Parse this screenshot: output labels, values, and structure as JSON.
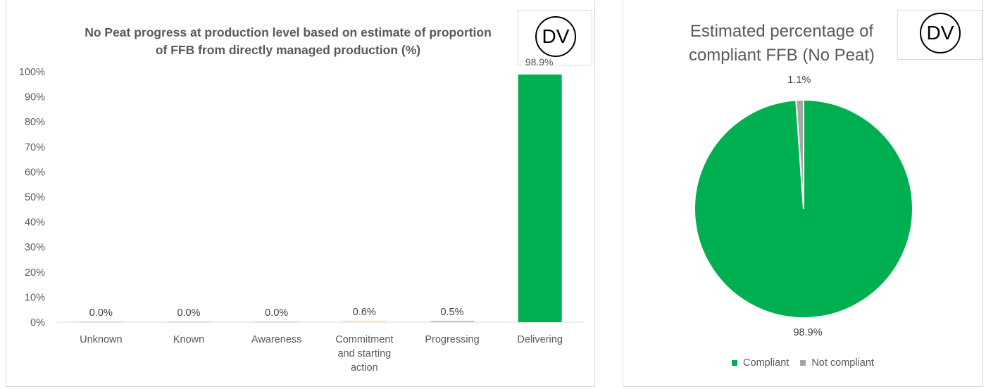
{
  "bar_title_line1": "No Peat progress at production level based on estimate of proportion",
  "bar_title_line2": "of FFB from directly managed production (%)",
  "pie_title_line1": "Estimated percentage of",
  "pie_title_line2": "compliant FFB (No Peat)",
  "dv_label": "DV",
  "chart_data": [
    {
      "type": "bar",
      "title": "No Peat progress at production level based on estimate of proportion of FFB from directly managed production (%)",
      "categories": [
        "Unknown",
        "Known",
        "Awareness",
        "Commitment and starting action",
        "Progressing",
        "Delivering"
      ],
      "category_lines": [
        [
          "Unknown"
        ],
        [
          "Known"
        ],
        [
          "Awareness"
        ],
        [
          "Commitment",
          "and starting",
          "action"
        ],
        [
          "Progressing"
        ],
        [
          "Delivering"
        ]
      ],
      "values": [
        0.0,
        0.0,
        0.0,
        0.6,
        0.5,
        98.9
      ],
      "data_labels": [
        "0.0%",
        "0.0%",
        "0.0%",
        "0.6%",
        "0.5%",
        "98.9%"
      ],
      "colors": [
        "#bfbfbf",
        "#bfbfbf",
        "#bfbfbf",
        "#ffe699",
        "#a9d18e",
        "#00b050"
      ],
      "ylim": [
        0,
        100
      ],
      "yticks": [
        "0%",
        "10%",
        "20%",
        "30%",
        "40%",
        "50%",
        "60%",
        "70%",
        "80%",
        "90%",
        "100%"
      ],
      "grid": false,
      "legend": "none"
    },
    {
      "type": "pie",
      "title": "Estimated percentage of compliant FFB (No Peat)",
      "labels": [
        "Compliant",
        "Not compliant"
      ],
      "values": [
        98.9,
        1.1
      ],
      "data_labels": [
        "98.9%",
        "1.1%"
      ],
      "colors": [
        "#00b050",
        "#a6a6a6"
      ],
      "legend": "bottom"
    }
  ]
}
